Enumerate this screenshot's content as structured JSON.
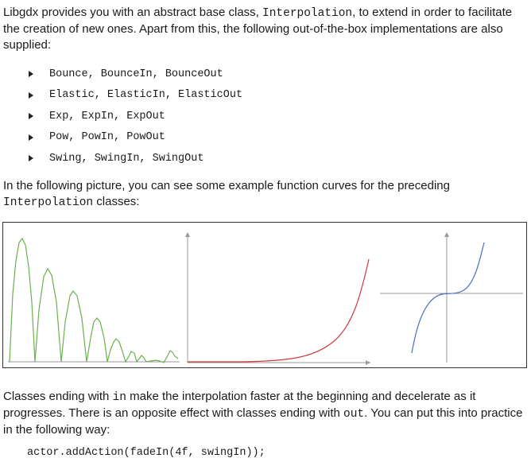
{
  "paragraph1": {
    "text_a": "Libgdx provides you with an abstract base class, ",
    "code_a": "Interpolation",
    "text_b": ", to extend in order to facilitate the creation of new ones. Apart from this, the following out-of-the-box implementations are also supplied:"
  },
  "implementations": [
    "Bounce, BounceIn, BounceOut",
    "Elastic, ElasticIn, ElasticOut",
    "Exp, ExpIn, ExpOut",
    "Pow, PowIn, PowOut",
    "Swing, SwingIn, SwingOut"
  ],
  "paragraph2": {
    "text_a": "In the following picture, you can see some example function curves for the preceding ",
    "code_a": "Interpolation",
    "text_b": " classes:"
  },
  "figure": {
    "colors": {
      "bounce": "#6ab04c",
      "exp": "#cc3b3b",
      "swing": "#4a6fc1",
      "axis": "#999999"
    }
  },
  "paragraph3": {
    "text_a": "Classes ending with ",
    "code_a": "in",
    "text_b": " make the interpolation faster at the beginning and decelerate as it progresses. There is an opposite effect with classes ending with ",
    "code_b": "out",
    "text_c": ". You can put this into practice in the following way:"
  },
  "code_example": "actor.addAction(fadeIn(4f, swingIn));"
}
